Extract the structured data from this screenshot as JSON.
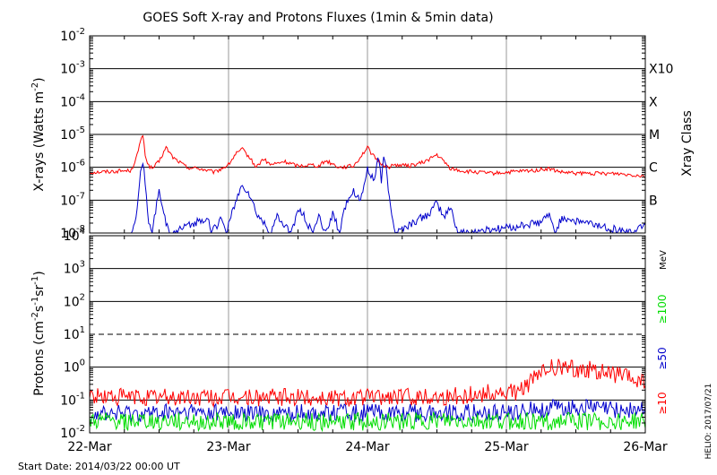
{
  "title": "GOES Soft X-ray and Protons Fluxes   (1min & 5min data)",
  "start_date": "Start Date: 2014/03/22 00:00 UT",
  "credit": "HELIO: 2017/07/21",
  "colors": {
    "red": "#ff0000",
    "blue": "#0000cc",
    "green": "#00dd00",
    "grid": "#999999"
  },
  "chart_data": [
    {
      "type": "line",
      "panel": "xray",
      "ylabel": "X-rays (Watts m^-2)",
      "yscale": "log",
      "ylim": [
        1e-08,
        0.01
      ],
      "xlim": [
        "2014-03-22T00:00",
        "2014-03-26T00:00"
      ],
      "x_tick_labels": [
        "22-Mar",
        "23-Mar",
        "24-Mar",
        "25-Mar",
        "26-Mar"
      ],
      "y_tick_labels": [
        {
          "value": 1e-08,
          "base": "10",
          "exp": "-8"
        },
        {
          "value": 1e-07,
          "base": "10",
          "exp": "-7"
        },
        {
          "value": 1e-06,
          "base": "10",
          "exp": "-6"
        },
        {
          "value": 1e-05,
          "base": "10",
          "exp": "-5"
        },
        {
          "value": 0.0001,
          "base": "10",
          "exp": "-4"
        },
        {
          "value": 0.001,
          "base": "10",
          "exp": "-3"
        },
        {
          "value": 0.01,
          "base": "10",
          "exp": "-2"
        }
      ],
      "right_axis_title": "Xray Class",
      "class_labels": [
        {
          "label": "B",
          "value": 1e-07
        },
        {
          "label": "C",
          "value": 1e-06
        },
        {
          "label": "M",
          "value": 1e-05
        },
        {
          "label": "X",
          "value": 0.0001
        },
        {
          "label": "X10",
          "value": 0.001
        }
      ],
      "grid": true,
      "series": [
        {
          "color": "red",
          "x": [
            0.0,
            0.3,
            0.35,
            0.38,
            0.4,
            0.42,
            0.45,
            0.5,
            0.55,
            0.6,
            0.7,
            0.8,
            0.9,
            1.0,
            1.05,
            1.1,
            1.15,
            1.2,
            1.25,
            1.3,
            1.35,
            1.4,
            1.5,
            1.6,
            1.65,
            1.7,
            1.8,
            1.9,
            2.0,
            2.05,
            2.1,
            2.15,
            2.2,
            2.3,
            2.4,
            2.5,
            2.55,
            2.6,
            2.7,
            2.8,
            2.9,
            3.0,
            3.1,
            3.2,
            3.3,
            3.4,
            3.5,
            3.6,
            3.7,
            3.8,
            3.9,
            4.0
          ],
          "y": [
            7e-07,
            8e-07,
            3e-06,
            1.1e-05,
            2.5e-06,
            1.2e-06,
            9e-07,
            1.5e-06,
            4e-06,
            2e-06,
            1e-06,
            9e-07,
            7e-07,
            1.2e-06,
            2.5e-06,
            3.5e-06,
            2e-06,
            1e-06,
            1.8e-06,
            1.2e-06,
            1.3e-06,
            1.5e-06,
            1.1e-06,
            1.2e-06,
            1.1e-06,
            1.6e-06,
            1e-06,
            1.1e-06,
            4e-06,
            2e-06,
            1.3e-06,
            1e-06,
            1.2e-06,
            1.1e-06,
            1.4e-06,
            2.4e-06,
            1.5e-06,
            9e-07,
            7.5e-07,
            7e-07,
            6.5e-07,
            7e-07,
            7.5e-07,
            8e-07,
            9e-07,
            7e-07,
            6.5e-07,
            6.5e-07,
            6.5e-07,
            6.5e-07,
            6e-07,
            5.5e-07
          ]
        },
        {
          "color": "blue",
          "x": [
            0.3,
            0.33,
            0.35,
            0.38,
            0.4,
            0.43,
            0.45,
            0.5,
            0.52,
            0.55,
            0.58,
            0.6,
            0.85,
            0.88,
            0.95,
            0.98,
            1.05,
            1.1,
            1.15,
            1.2,
            1.25,
            1.3,
            1.35,
            1.45,
            1.5,
            1.55,
            1.6,
            1.65,
            1.7,
            1.75,
            1.8,
            1.85,
            1.9,
            1.95,
            2.0,
            2.05,
            2.08,
            2.1,
            2.12,
            2.15,
            2.2,
            2.45,
            2.5,
            2.55,
            2.6,
            2.65,
            2.7,
            3.25,
            3.3,
            3.35,
            3.4,
            3.9,
            4.0
          ],
          "y": [
            1e-08,
            2e-08,
            1.5e-07,
            2e-06,
            3e-07,
            1.5e-08,
            1e-08,
            2e-07,
            6e-08,
            2e-08,
            1e-08,
            1e-08,
            3e-08,
            1e-08,
            3e-08,
            1e-08,
            8e-08,
            3e-07,
            1.5e-07,
            4e-08,
            2e-08,
            1e-08,
            3e-08,
            1e-08,
            5e-08,
            3e-08,
            1e-08,
            3e-08,
            1e-08,
            4e-08,
            1e-08,
            1e-07,
            2e-07,
            1e-07,
            8e-07,
            4e-07,
            2.5e-06,
            3e-07,
            3e-06,
            2e-07,
            1e-08,
            4e-08,
            8e-08,
            3e-08,
            6e-08,
            1e-08,
            1e-08,
            2e-08,
            4e-08,
            1e-08,
            3e-08,
            1e-08,
            2e-08
          ]
        }
      ]
    },
    {
      "type": "line",
      "panel": "protons",
      "ylabel": "Protons (cm^-2 s^-1 sr^-1)",
      "yscale": "log",
      "ylim": [
        0.01,
        10000
      ],
      "xlim": [
        "2014-03-22T00:00",
        "2014-03-26T00:00"
      ],
      "x_tick_labels": [
        "22-Mar",
        "23-Mar",
        "24-Mar",
        "25-Mar",
        "26-Mar"
      ],
      "y_tick_labels": [
        {
          "value": 0.01,
          "base": "10",
          "exp": "-2"
        },
        {
          "value": 0.1,
          "base": "10",
          "exp": "-1"
        },
        {
          "value": 1,
          "base": "10",
          "exp": "0"
        },
        {
          "value": 10,
          "base": "10",
          "exp": "1"
        },
        {
          "value": 100,
          "base": "10",
          "exp": "2"
        },
        {
          "value": 1000,
          "base": "10",
          "exp": "3"
        },
        {
          "value": 10000,
          "base": "10",
          "exp": "4"
        }
      ],
      "threshold": {
        "value": 10,
        "style": "dashed"
      },
      "energy_unit": "MeV",
      "grid": true,
      "series": [
        {
          "name": "≥10",
          "color": "red",
          "x": [
            0.0,
            0.5,
            1.0,
            1.5,
            2.0,
            2.3,
            2.6,
            2.8,
            2.9,
            3.0,
            3.1,
            3.2,
            3.3,
            3.4,
            3.5,
            3.6,
            3.7,
            3.8,
            3.9,
            4.0
          ],
          "y": [
            0.13,
            0.12,
            0.12,
            0.12,
            0.12,
            0.13,
            0.13,
            0.15,
            0.17,
            0.15,
            0.2,
            0.45,
            0.95,
            1.0,
            0.9,
            0.85,
            0.7,
            0.6,
            0.45,
            0.35
          ]
        },
        {
          "name": "≥50",
          "color": "blue",
          "x": [
            0.0,
            0.5,
            1.0,
            1.5,
            2.0,
            2.5,
            3.0,
            3.2,
            3.4,
            3.6,
            3.8,
            4.0
          ],
          "y": [
            0.04,
            0.04,
            0.04,
            0.04,
            0.04,
            0.04,
            0.04,
            0.05,
            0.06,
            0.06,
            0.05,
            0.05
          ]
        },
        {
          "name": "≥100",
          "color": "green",
          "x": [
            0.0,
            1.0,
            2.0,
            3.0,
            4.0
          ],
          "y": [
            0.022,
            0.022,
            0.022,
            0.022,
            0.022
          ]
        }
      ]
    }
  ]
}
